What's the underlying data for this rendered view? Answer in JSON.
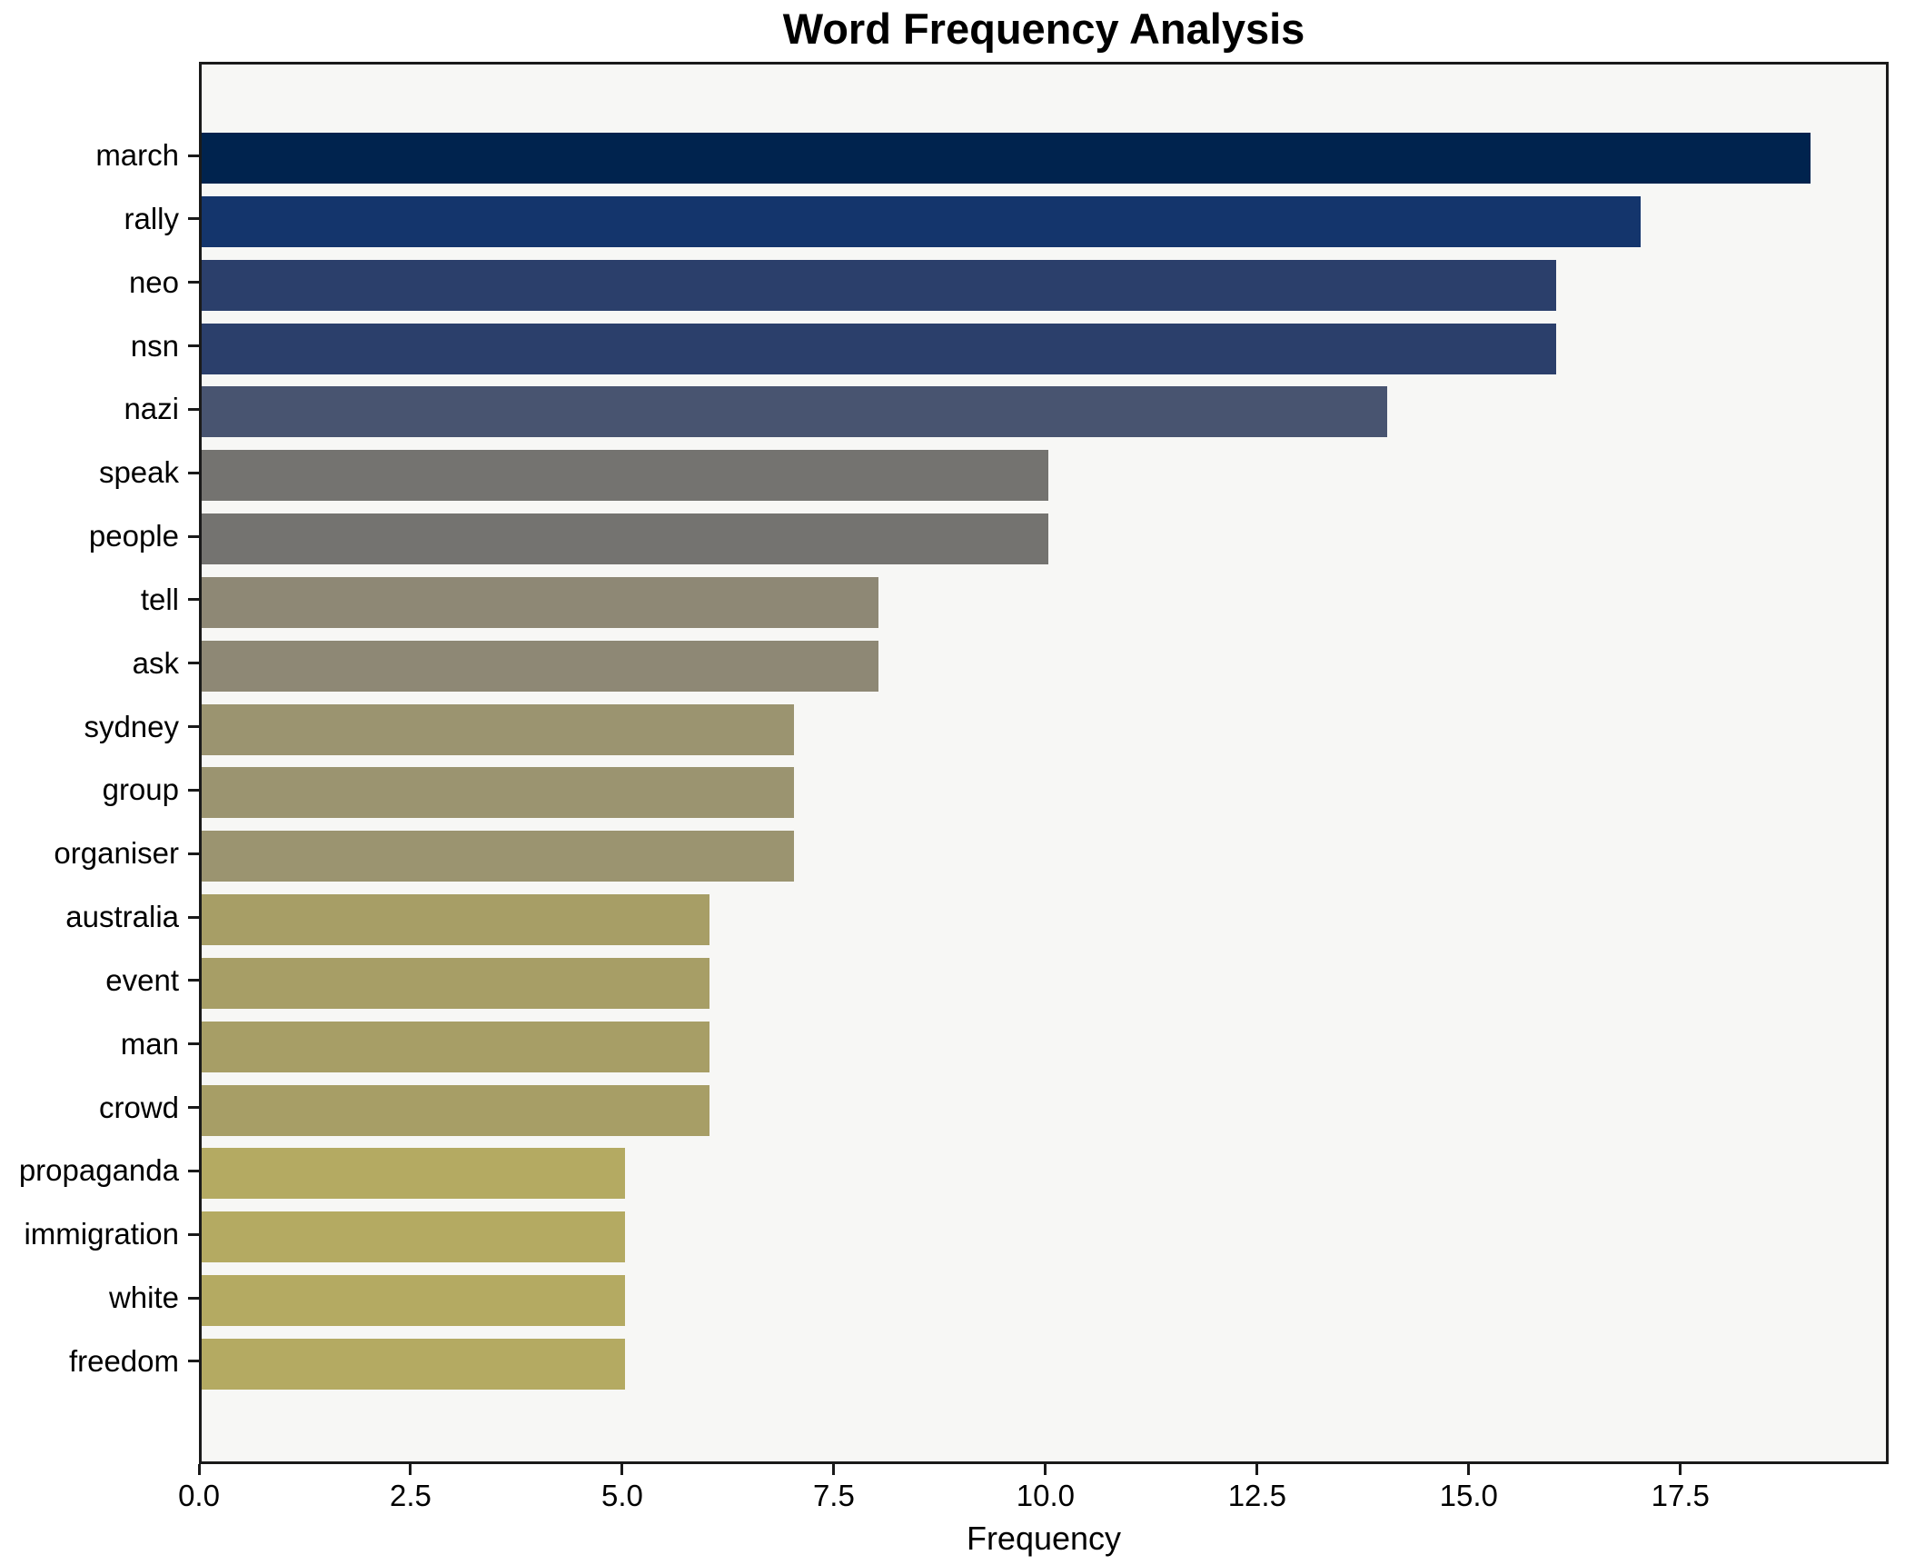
{
  "figure": {
    "title": "Word Frequency Analysis",
    "xlabel": "Frequency",
    "background_color": "#ffffff",
    "plot_background_color": "#f7f7f5",
    "spine_color": "#1a1a1a",
    "text_color": "#000000"
  },
  "chart_data": {
    "type": "bar",
    "orientation": "horizontal",
    "title": "Word Frequency Analysis",
    "xlabel": "Frequency",
    "ylabel": "",
    "categories": [
      "march",
      "rally",
      "neo",
      "nsn",
      "nazi",
      "speak",
      "people",
      "tell",
      "ask",
      "sydney",
      "group",
      "organiser",
      "australia",
      "event",
      "man",
      "crowd",
      "propaganda",
      "immigration",
      "white",
      "freedom"
    ],
    "values": [
      19,
      17,
      16,
      16,
      14,
      10,
      10,
      8,
      8,
      7,
      7,
      7,
      6,
      6,
      6,
      6,
      5,
      5,
      5,
      5
    ],
    "bar_colors": [
      "#00234e",
      "#14356c",
      "#2b3f6b",
      "#2b3f6b",
      "#485470",
      "#747370",
      "#747370",
      "#8e8875",
      "#8e8875",
      "#9b9470",
      "#9b9470",
      "#9b9470",
      "#a79e66",
      "#a79e66",
      "#a79e66",
      "#a79e66",
      "#b4aa62",
      "#b4aa62",
      "#b4aa62",
      "#b4aa62"
    ],
    "xlim": [
      0,
      19.96
    ],
    "xticks": [
      0,
      2.5,
      5,
      7.5,
      10,
      12.5,
      15,
      17.5
    ],
    "xtick_labels": [
      "0.0",
      "2.5",
      "5.0",
      "7.5",
      "10.0",
      "12.5",
      "15.0",
      "17.5"
    ],
    "grid": false,
    "legend": null,
    "bars_sorted_descending": true
  }
}
